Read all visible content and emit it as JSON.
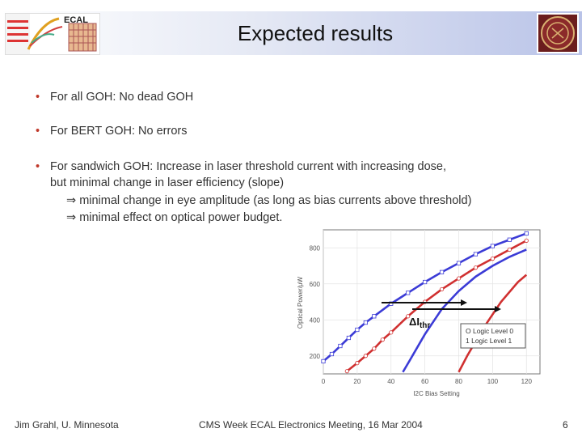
{
  "header": {
    "title": "Expected results",
    "logo_left_text": "ECAL",
    "logo_left_icon": "cms-ecal-logo",
    "logo_right_icon": "university-seal"
  },
  "bullets": [
    {
      "text": "For all GOH:  No dead GOH"
    },
    {
      "text": "For BERT GOH:  No errors"
    },
    {
      "text": "For sandwich GOH: Increase in laser threshold current with increasing dose,",
      "line2": "but minimal change in laser efficiency (slope)"
    }
  ],
  "implications": [
    {
      "symbol": "⇒",
      "text": "minimal change in eye amplitude (as long as bias currents above threshold)"
    },
    {
      "symbol": "⇒",
      "text": "minimal effect on optical power budget."
    }
  ],
  "chart_data": {
    "type": "line",
    "xlabel": "I2C Bias Setting",
    "ylabel": "Optical Power/μW",
    "x_ticks": [
      0,
      20,
      40,
      60,
      80,
      100,
      120
    ],
    "y_ticks": [
      200,
      400,
      600,
      800
    ],
    "xlim": [
      0,
      128
    ],
    "ylim": [
      100,
      900
    ],
    "series": [
      {
        "name": "Logic Level 0",
        "color": "#3b3bd6",
        "marker": "square",
        "x": [
          0,
          5,
          10,
          15,
          20,
          25,
          30,
          40,
          50,
          60,
          70,
          80,
          90,
          100,
          110,
          120
        ],
        "y": [
          170,
          210,
          255,
          300,
          345,
          385,
          420,
          490,
          550,
          610,
          665,
          715,
          765,
          810,
          845,
          880
        ]
      },
      {
        "name": "Logic Level 1",
        "color": "#d03030",
        "marker": "circle",
        "x": [
          14,
          20,
          25,
          30,
          35,
          40,
          50,
          60,
          70,
          80,
          90,
          100,
          110,
          120
        ],
        "y": [
          115,
          160,
          200,
          240,
          290,
          330,
          420,
          500,
          570,
          630,
          690,
          740,
          790,
          840
        ]
      },
      {
        "name": "",
        "color": "#3b3bd6",
        "marker": "none",
        "x": [
          47,
          52,
          60,
          70,
          80,
          90,
          100,
          110,
          120
        ],
        "y": [
          110,
          190,
          320,
          460,
          560,
          640,
          700,
          750,
          790
        ]
      },
      {
        "name": "",
        "color": "#d03030",
        "marker": "none",
        "x": [
          80,
          85,
          95,
          105,
          115,
          120
        ],
        "y": [
          110,
          200,
          360,
          500,
          610,
          650
        ]
      }
    ],
    "annotation": {
      "text_main": "ΔI",
      "text_sub": "thr"
    },
    "legend": {
      "placement": "bottom-right",
      "labels": [
        "O  Logic Level 0",
        "1  Logic Level 1"
      ]
    }
  },
  "footer": {
    "left": "Jim Grahl, U. Minnesota",
    "center": "CMS Week ECAL Electronics Meeting, 16 Mar 2004",
    "page": "6"
  }
}
